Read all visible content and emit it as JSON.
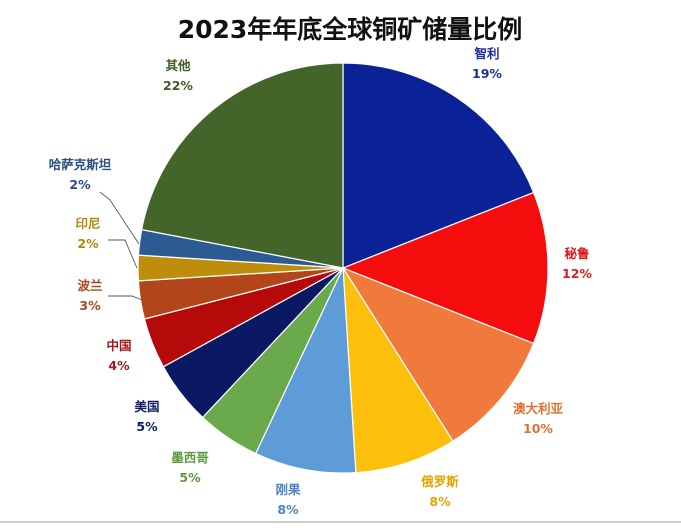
{
  "chart_data": {
    "type": "pie",
    "title": "2023年年底全球铜矿储量比例",
    "unit": "%",
    "slices": [
      {
        "name": "智利",
        "value": 19,
        "label": "19%",
        "color": "#0a2296"
      },
      {
        "name": "秘鲁",
        "value": 12,
        "label": "12%",
        "color": "#f50d0d"
      },
      {
        "name": "澳大利亚",
        "value": 10,
        "label": "10%",
        "color": "#f07a3c"
      },
      {
        "name": "俄罗斯",
        "value": 8,
        "label": "8%",
        "color": "#fbbf0c"
      },
      {
        "name": "刚果",
        "value": 8,
        "label": "8%",
        "color": "#5e9cd8"
      },
      {
        "name": "墨西哥",
        "value": 5,
        "label": "5%",
        "color": "#6aaa4c"
      },
      {
        "name": "美国",
        "value": 5,
        "label": "5%",
        "color": "#0b1862"
      },
      {
        "name": "中国",
        "value": 4,
        "label": "4%",
        "color": "#b60a0a"
      },
      {
        "name": "波兰",
        "value": 3,
        "label": "3%",
        "color": "#b2461a"
      },
      {
        "name": "印尼",
        "value": 2,
        "label": "2%",
        "color": "#bf8d0c"
      },
      {
        "name": "哈萨克斯坦",
        "value": 2,
        "label": "2%",
        "color": "#2c5b91"
      },
      {
        "name": "其他",
        "value": 22,
        "label": "22%",
        "color": "#44652a"
      }
    ],
    "start_angle_deg": 0,
    "direction": "clockwise",
    "slice_border_color": "#ffffff",
    "label_text_colors": {
      "智利": "#1d2f9a",
      "秘鲁": "#e01a1a",
      "澳大利亚": "#e2702e",
      "俄罗斯": "#e0a500",
      "刚果": "#4f86c0",
      "墨西哥": "#5d9a40",
      "美国": "#0d1e66",
      "中国": "#a61616",
      "波兰": "#a8481e",
      "印尼": "#b3880f",
      "哈萨克斯坦": "#2a4f80",
      "其他": "#3e5c26"
    }
  }
}
